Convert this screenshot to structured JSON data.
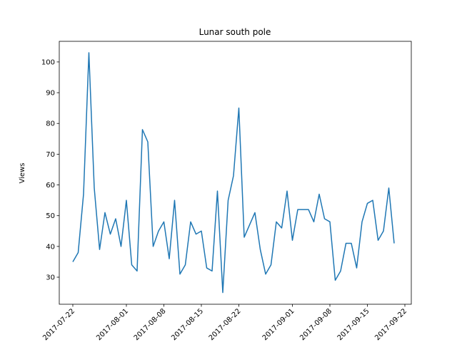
{
  "chart_data": {
    "type": "line",
    "title": "Lunar south pole",
    "y_label": "Views",
    "x": [
      "2017-07-22",
      "2017-07-23",
      "2017-07-24",
      "2017-07-25",
      "2017-07-26",
      "2017-07-27",
      "2017-07-28",
      "2017-07-29",
      "2017-07-30",
      "2017-07-31",
      "2017-08-01",
      "2017-08-02",
      "2017-08-03",
      "2017-08-04",
      "2017-08-05",
      "2017-08-06",
      "2017-08-07",
      "2017-08-08",
      "2017-08-09",
      "2017-08-10",
      "2017-08-11",
      "2017-08-12",
      "2017-08-13",
      "2017-08-14",
      "2017-08-15",
      "2017-08-16",
      "2017-08-17",
      "2017-08-18",
      "2017-08-19",
      "2017-08-20",
      "2017-08-21",
      "2017-08-22",
      "2017-08-23",
      "2017-08-24",
      "2017-08-25",
      "2017-08-26",
      "2017-08-27",
      "2017-08-28",
      "2017-08-29",
      "2017-08-30",
      "2017-08-31",
      "2017-09-01",
      "2017-09-02",
      "2017-09-03",
      "2017-09-04",
      "2017-09-05",
      "2017-09-06",
      "2017-09-07",
      "2017-09-08",
      "2017-09-09",
      "2017-09-10",
      "2017-09-11",
      "2017-09-12",
      "2017-09-13",
      "2017-09-14",
      "2017-09-15",
      "2017-09-16",
      "2017-09-17",
      "2017-09-18",
      "2017-09-19",
      "2017-09-20"
    ],
    "series": [
      {
        "name": "Views",
        "color": "#1f77b4",
        "values": [
          35,
          38,
          57,
          103,
          59,
          39,
          51,
          44,
          49,
          40,
          55,
          34,
          32,
          78,
          74,
          40,
          45,
          48,
          36,
          55,
          31,
          34,
          48,
          44,
          45,
          33,
          32,
          58,
          25,
          55,
          63,
          85,
          43,
          47,
          51,
          39,
          31,
          34,
          48,
          46,
          58,
          42,
          52,
          52,
          52,
          48,
          57,
          49,
          48,
          29,
          32,
          41,
          41,
          33,
          48,
          54,
          55,
          42,
          45,
          59,
          41
        ]
      }
    ],
    "xlim": [
      "2017-07-19T11:16Z",
      "2017-09-23T04:48Z"
    ],
    "xticks": [
      "2017-07-22",
      "2017-08-01",
      "2017-08-08",
      "2017-08-15",
      "2017-08-22",
      "2017-09-01",
      "2017-09-08",
      "2017-09-15",
      "2017-09-22"
    ],
    "ylim": [
      21.2,
      106.7
    ],
    "yticks": [
      30,
      40,
      50,
      60,
      70,
      80,
      90,
      100
    ]
  }
}
